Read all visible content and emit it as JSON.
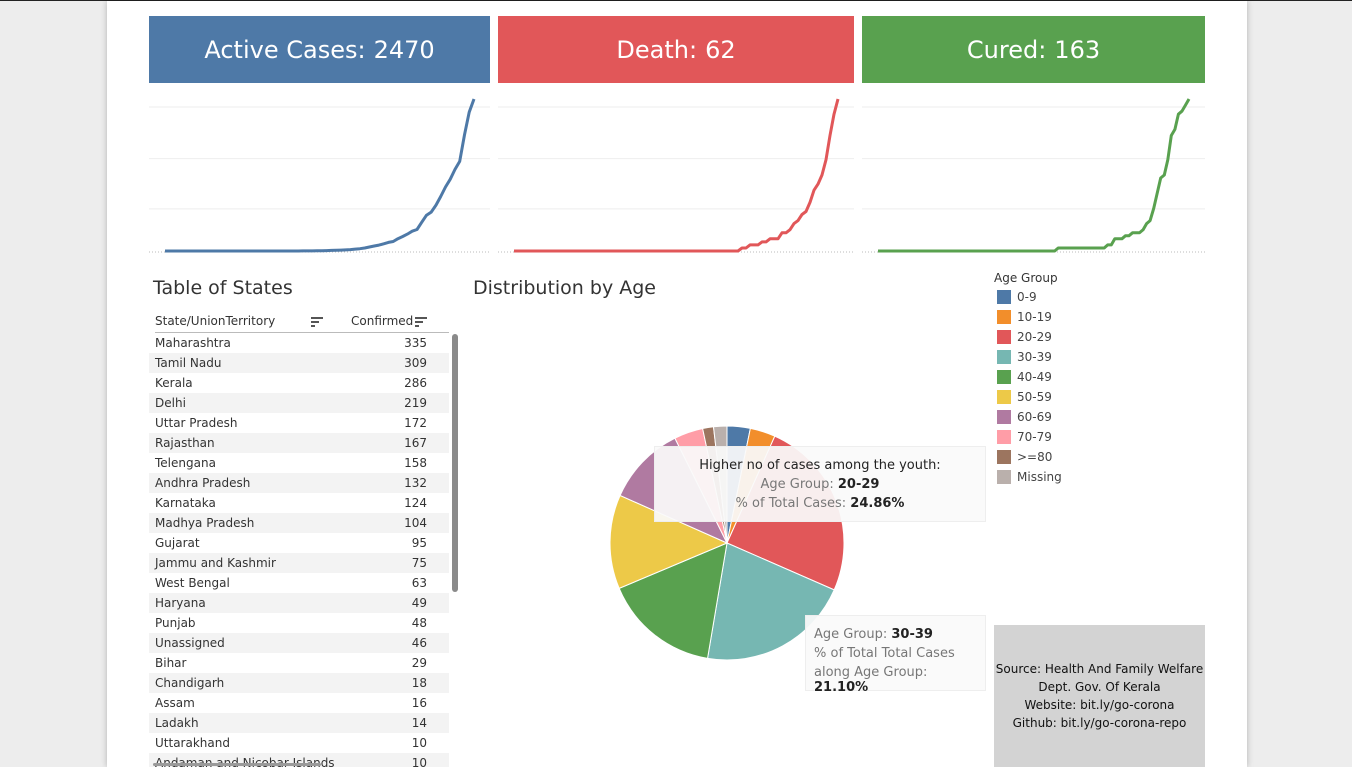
{
  "kpis": {
    "active": {
      "label": "Active Cases:",
      "value": "2470",
      "color": "#4e79a7"
    },
    "death": {
      "label": "Death:",
      "value": "62",
      "color": "#e15759"
    },
    "cured": {
      "label": "Cured:",
      "value": "163",
      "color": "#59a14f"
    }
  },
  "sparklines": {
    "active": [
      0,
      0,
      0,
      0,
      0,
      0,
      0,
      0,
      0,
      0,
      0,
      0,
      0,
      0,
      0,
      0,
      0,
      0,
      0,
      0,
      0,
      0,
      0,
      0,
      0,
      0,
      0,
      0,
      0,
      1,
      1,
      1,
      2,
      2,
      3,
      4,
      5,
      6,
      8,
      10,
      13,
      16,
      21,
      28,
      35,
      41,
      50,
      60,
      66,
      86,
      101,
      118,
      138,
      150,
      200,
      250,
      271,
      320,
      380,
      446,
      500,
      569,
      625,
      810,
      968,
      1060
    ],
    "death": [
      0,
      0,
      0,
      0,
      0,
      0,
      0,
      0,
      0,
      0,
      0,
      0,
      0,
      0,
      0,
      0,
      0,
      0,
      0,
      0,
      0,
      0,
      0,
      0,
      0,
      0,
      0,
      0,
      0,
      0,
      0,
      0,
      0,
      0,
      0,
      0,
      0,
      0,
      0,
      0,
      0,
      0,
      0,
      0,
      0,
      0,
      0,
      0,
      0,
      0,
      0,
      0,
      0,
      0,
      0,
      0,
      0,
      1,
      1,
      2,
      2,
      2,
      3,
      3,
      4,
      4,
      4,
      6,
      6,
      7,
      9,
      10,
      12,
      13,
      16,
      20,
      22,
      25,
      30,
      38,
      45,
      50
    ],
    "cured": [
      0,
      0,
      0,
      0,
      0,
      0,
      0,
      0,
      0,
      0,
      0,
      0,
      0,
      0,
      0,
      0,
      0,
      0,
      0,
      0,
      0,
      0,
      0,
      0,
      0,
      0,
      0,
      0,
      0,
      0,
      0,
      0,
      0,
      0,
      0,
      0,
      0,
      0,
      0,
      0,
      0,
      0,
      0,
      0,
      0,
      0,
      0,
      0,
      0,
      0,
      0,
      1,
      1,
      1,
      1,
      1,
      1,
      1,
      1,
      1,
      1,
      1,
      1,
      1,
      1,
      2,
      2,
      4,
      4,
      4,
      5,
      5,
      6,
      6,
      6,
      7,
      9,
      10,
      14,
      19,
      24,
      25,
      30,
      38,
      40,
      45,
      46,
      48,
      50
    ]
  },
  "table": {
    "title": "Table of States",
    "col_state": "State/UnionTerritory",
    "col_confirmed": "Confirmed",
    "rows": [
      {
        "state": "Maharashtra",
        "confirmed": "335"
      },
      {
        "state": "Tamil Nadu",
        "confirmed": "309"
      },
      {
        "state": "Kerala",
        "confirmed": "286"
      },
      {
        "state": "Delhi",
        "confirmed": "219"
      },
      {
        "state": "Uttar Pradesh",
        "confirmed": "172"
      },
      {
        "state": "Rajasthan",
        "confirmed": "167"
      },
      {
        "state": "Telengana",
        "confirmed": "158"
      },
      {
        "state": "Andhra Pradesh",
        "confirmed": "132"
      },
      {
        "state": "Karnataka",
        "confirmed": "124"
      },
      {
        "state": "Madhya Pradesh",
        "confirmed": "104"
      },
      {
        "state": "Gujarat",
        "confirmed": "95"
      },
      {
        "state": "Jammu and Kashmir",
        "confirmed": "75"
      },
      {
        "state": "West Bengal",
        "confirmed": "63"
      },
      {
        "state": "Haryana",
        "confirmed": "49"
      },
      {
        "state": "Punjab",
        "confirmed": "48"
      },
      {
        "state": "Unassigned",
        "confirmed": "46"
      },
      {
        "state": "Bihar",
        "confirmed": "29"
      },
      {
        "state": "Chandigarh",
        "confirmed": "18"
      },
      {
        "state": "Assam",
        "confirmed": "16"
      },
      {
        "state": "Ladakh",
        "confirmed": "14"
      },
      {
        "state": "Uttarakhand",
        "confirmed": "10"
      },
      {
        "state": "Andaman and Nicobar Islands",
        "confirmed": "10"
      }
    ]
  },
  "chart_data": {
    "type": "pie",
    "title": "Distribution by Age",
    "legend_title": "Age Group",
    "legend_position": "right",
    "slices": [
      {
        "label": "0-9",
        "value": 3.2,
        "color": "#4e79a7"
      },
      {
        "label": "10-19",
        "value": 3.5,
        "color": "#f28e2b"
      },
      {
        "label": "20-29",
        "value": 24.86,
        "color": "#e15759"
      },
      {
        "label": "30-39",
        "value": 21.1,
        "color": "#76b7b2"
      },
      {
        "label": "40-49",
        "value": 16.0,
        "color": "#59a14f"
      },
      {
        "label": "50-59",
        "value": 13.0,
        "color": "#edc948"
      },
      {
        "label": "60-69",
        "value": 11.0,
        "color": "#b07aa1"
      },
      {
        "label": "70-79",
        "value": 4.0,
        "color": "#ff9da7"
      },
      {
        "label": ">=80",
        "value": 1.5,
        "color": "#9c755f"
      },
      {
        "label": "Missing",
        "value": 1.84,
        "color": "#bab0ac"
      }
    ]
  },
  "tooltip1": {
    "heading": "Higher no of cases among the youth:",
    "age_label": "Age Group:",
    "age_value": "20-29",
    "pct_label": "% of Total Cases:",
    "pct_value": "24.86%"
  },
  "tooltip2": {
    "age_label": "Age Group:",
    "age_value": "30-39",
    "pct_label1": "% of Total Total Cases",
    "pct_label2": "along Age Group:",
    "pct_value": "21.10%"
  },
  "source": {
    "line1": "Source: Health And Family Welfare",
    "line2": "Dept. Gov. Of Kerala",
    "line3": "Website: bit.ly/go-corona",
    "line4": "Github: bit.ly/go-corona-repo"
  }
}
